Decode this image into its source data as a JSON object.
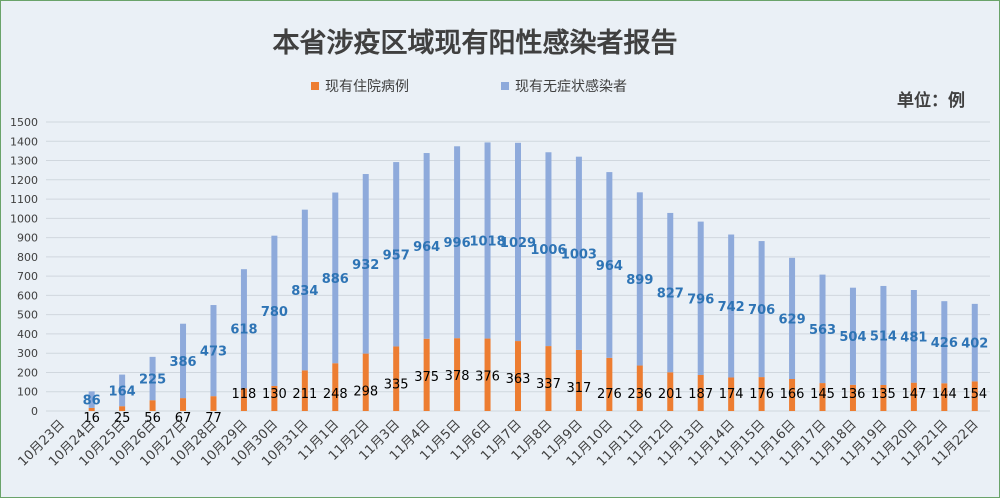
{
  "chart_data": {
    "type": "bar",
    "stacked": true,
    "title": "本省涉疫区域现有阳性感染者报告",
    "unit_label": "单位：例",
    "categories": [
      "10月23日",
      "10月24日",
      "10月25日",
      "10月26日",
      "10月27日",
      "10月28日",
      "10月29日",
      "10月30日",
      "10月31日",
      "11月1日",
      "11月2日",
      "11月3日",
      "11月4日",
      "11月5日",
      "11月6日",
      "11月7日",
      "11月8日",
      "11月9日",
      "11月10日",
      "11月11日",
      "11月12日",
      "11月13日",
      "11月14日",
      "11月15日",
      "11月16日",
      "11月17日",
      "11月18日",
      "11月19日",
      "11月20日",
      "11月21日",
      "11月22日"
    ],
    "series": [
      {
        "name": "现有住院病例",
        "color": "#ed7d31",
        "label_color": "#000000",
        "values": [
          null,
          16,
          25,
          56,
          67,
          77,
          118,
          130,
          211,
          248,
          298,
          335,
          375,
          378,
          376,
          363,
          337,
          317,
          276,
          236,
          201,
          187,
          174,
          176,
          166,
          145,
          136,
          135,
          147,
          144,
          154
        ]
      },
      {
        "name": "现有无症状感染者",
        "color": "#8eaadb",
        "label_color": "#2e74b5",
        "values": [
          null,
          86,
          164,
          225,
          386,
          473,
          618,
          780,
          834,
          886,
          932,
          957,
          964,
          996,
          1018,
          1029,
          1006,
          1003,
          964,
          899,
          827,
          796,
          742,
          706,
          629,
          563,
          504,
          514,
          481,
          426,
          402
        ]
      }
    ],
    "ylim": [
      0,
      1500
    ],
    "yticks": [
      0,
      100,
      200,
      300,
      400,
      500,
      600,
      700,
      800,
      900,
      1000,
      1100,
      1200,
      1300,
      1400,
      1500
    ],
    "grid": true,
    "legend": "top-center"
  }
}
